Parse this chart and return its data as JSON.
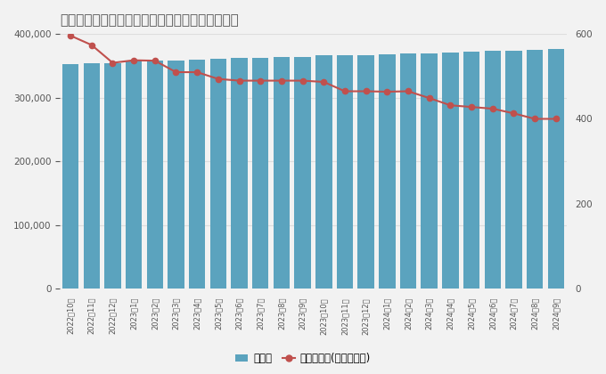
{
  "title": "マネーパートナーズの口座数と預かり資産の推移",
  "categories": [
    "2022年10月",
    "2022年11月",
    "2022年12月",
    "2023年1月",
    "2023年2月",
    "2023年3月",
    "2023年4月",
    "2023年5月",
    "2023年6月",
    "2023年7月",
    "2023年8月",
    "2023年9月",
    "2023年10月",
    "2023年11月",
    "2023年12月",
    "2024年1月",
    "2024年2月",
    "2024年3月",
    "2024年4月",
    "2024年5月",
    "2024年6月",
    "2024年7月",
    "2024年8月",
    "2024年9月"
  ],
  "accounts": [
    352000,
    354000,
    354000,
    358000,
    358000,
    358000,
    360000,
    361000,
    362000,
    363000,
    364000,
    364000,
    366000,
    366000,
    367000,
    368000,
    369000,
    370000,
    371000,
    372000,
    373000,
    374000,
    375000,
    376000
  ],
  "assets": [
    596,
    574,
    532,
    538,
    537,
    510,
    510,
    494,
    490,
    490,
    490,
    490,
    487,
    465,
    465,
    464,
    465,
    449,
    432,
    428,
    424,
    413,
    400,
    400
  ],
  "bar_color": "#5ba3be",
  "line_color": "#c0504d",
  "background_color": "#f2f2f2",
  "title_fontsize": 11,
  "title_color": "#555555",
  "ylim_left": [
    0,
    400000
  ],
  "ylim_right": [
    0,
    600
  ],
  "yticks_left": [
    0,
    100000,
    200000,
    300000,
    400000
  ],
  "yticks_right": [
    0,
    200,
    400,
    600
  ],
  "grid_color": "#dddddd",
  "legend_labels": [
    "口座数",
    "預かり資産(単位：億円)"
  ]
}
